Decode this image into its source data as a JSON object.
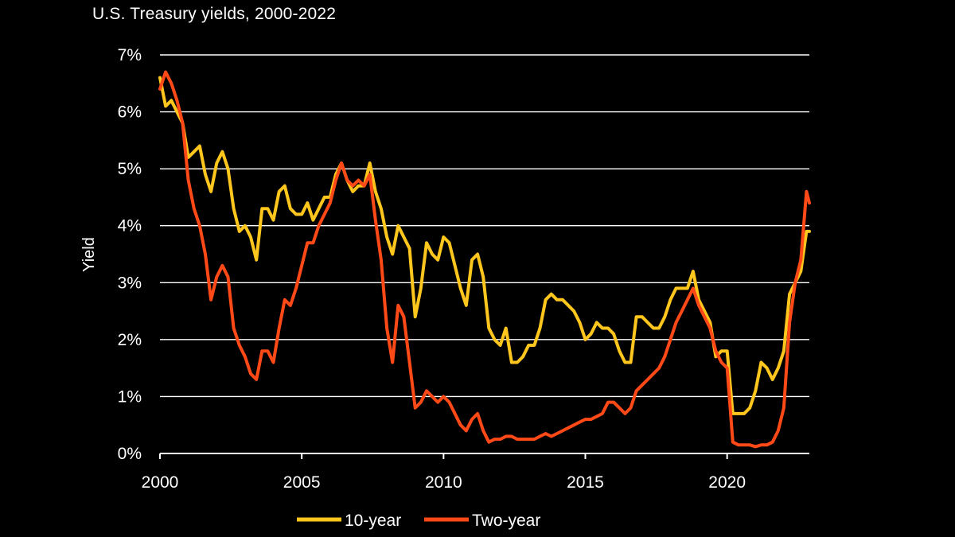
{
  "chart_data": {
    "type": "line",
    "title": "U.S. Treasury yields, 2000-2022",
    "xlabel": "",
    "ylabel": "Yield",
    "xlim": [
      2000,
      2022.9
    ],
    "ylim": [
      0,
      7
    ],
    "x_ticks": [
      "2000",
      "2005",
      "2010",
      "2015",
      "2020"
    ],
    "y_ticks": [
      "0%",
      "1%",
      "2%",
      "3%",
      "4%",
      "5%",
      "6%",
      "7%"
    ],
    "grid": "horizontal",
    "legend": "bottom",
    "series": [
      {
        "name": "10-year",
        "color": "#FFC61E",
        "x": [
          2000.0,
          2000.2,
          2000.4,
          2000.6,
          2000.8,
          2001.0,
          2001.2,
          2001.4,
          2001.6,
          2001.8,
          2002.0,
          2002.2,
          2002.4,
          2002.6,
          2002.8,
          2003.0,
          2003.2,
          2003.4,
          2003.6,
          2003.8,
          2004.0,
          2004.2,
          2004.4,
          2004.6,
          2004.8,
          2005.0,
          2005.2,
          2005.4,
          2005.6,
          2005.8,
          2006.0,
          2006.2,
          2006.4,
          2006.6,
          2006.8,
          2007.0,
          2007.2,
          2007.4,
          2007.6,
          2007.8,
          2008.0,
          2008.2,
          2008.4,
          2008.6,
          2008.8,
          2009.0,
          2009.2,
          2009.4,
          2009.6,
          2009.8,
          2010.0,
          2010.2,
          2010.4,
          2010.6,
          2010.8,
          2011.0,
          2011.2,
          2011.4,
          2011.6,
          2011.8,
          2012.0,
          2012.2,
          2012.4,
          2012.6,
          2012.8,
          2013.0,
          2013.2,
          2013.4,
          2013.6,
          2013.8,
          2014.0,
          2014.2,
          2014.4,
          2014.6,
          2014.8,
          2015.0,
          2015.2,
          2015.4,
          2015.6,
          2015.8,
          2016.0,
          2016.2,
          2016.4,
          2016.6,
          2016.8,
          2017.0,
          2017.2,
          2017.4,
          2017.6,
          2017.8,
          2018.0,
          2018.2,
          2018.4,
          2018.6,
          2018.8,
          2019.0,
          2019.2,
          2019.4,
          2019.6,
          2019.8,
          2020.0,
          2020.2,
          2020.4,
          2020.6,
          2020.8,
          2021.0,
          2021.2,
          2021.4,
          2021.6,
          2021.8,
          2022.0,
          2022.2,
          2022.4,
          2022.6,
          2022.8,
          2022.9
        ],
        "values": [
          6.6,
          6.1,
          6.2,
          6.0,
          5.8,
          5.2,
          5.3,
          5.4,
          4.9,
          4.6,
          5.1,
          5.3,
          5.0,
          4.3,
          3.9,
          4.0,
          3.8,
          3.4,
          4.3,
          4.3,
          4.1,
          4.6,
          4.7,
          4.3,
          4.2,
          4.2,
          4.4,
          4.1,
          4.3,
          4.5,
          4.5,
          4.9,
          5.1,
          4.8,
          4.6,
          4.7,
          4.7,
          5.1,
          4.6,
          4.3,
          3.8,
          3.5,
          4.0,
          3.8,
          3.6,
          2.4,
          2.9,
          3.7,
          3.5,
          3.4,
          3.8,
          3.7,
          3.3,
          2.9,
          2.6,
          3.4,
          3.5,
          3.1,
          2.2,
          2.0,
          1.9,
          2.2,
          1.6,
          1.6,
          1.7,
          1.9,
          1.9,
          2.2,
          2.7,
          2.8,
          2.7,
          2.7,
          2.6,
          2.5,
          2.3,
          2.0,
          2.1,
          2.3,
          2.2,
          2.2,
          2.1,
          1.8,
          1.6,
          1.6,
          2.4,
          2.4,
          2.3,
          2.2,
          2.2,
          2.4,
          2.7,
          2.9,
          2.9,
          2.9,
          3.2,
          2.7,
          2.5,
          2.3,
          1.7,
          1.8,
          1.8,
          0.7,
          0.7,
          0.7,
          0.8,
          1.1,
          1.6,
          1.5,
          1.3,
          1.5,
          1.8,
          2.8,
          3.0,
          3.2,
          3.9,
          3.9
        ]
      },
      {
        "name": "Two-year",
        "color": "#FF4A17",
        "x": [
          2000.0,
          2000.2,
          2000.4,
          2000.6,
          2000.8,
          2001.0,
          2001.2,
          2001.4,
          2001.6,
          2001.8,
          2002.0,
          2002.2,
          2002.4,
          2002.6,
          2002.8,
          2003.0,
          2003.2,
          2003.4,
          2003.6,
          2003.8,
          2004.0,
          2004.2,
          2004.4,
          2004.6,
          2004.8,
          2005.0,
          2005.2,
          2005.4,
          2005.6,
          2005.8,
          2006.0,
          2006.2,
          2006.4,
          2006.6,
          2006.8,
          2007.0,
          2007.2,
          2007.4,
          2007.6,
          2007.8,
          2008.0,
          2008.2,
          2008.4,
          2008.6,
          2008.8,
          2009.0,
          2009.2,
          2009.4,
          2009.6,
          2009.8,
          2010.0,
          2010.2,
          2010.4,
          2010.6,
          2010.8,
          2011.0,
          2011.2,
          2011.4,
          2011.6,
          2011.8,
          2012.0,
          2012.2,
          2012.4,
          2012.6,
          2012.8,
          2013.0,
          2013.2,
          2013.4,
          2013.6,
          2013.8,
          2014.0,
          2014.2,
          2014.4,
          2014.6,
          2014.8,
          2015.0,
          2015.2,
          2015.4,
          2015.6,
          2015.8,
          2016.0,
          2016.2,
          2016.4,
          2016.6,
          2016.8,
          2017.0,
          2017.2,
          2017.4,
          2017.6,
          2017.8,
          2018.0,
          2018.2,
          2018.4,
          2018.6,
          2018.8,
          2019.0,
          2019.2,
          2019.4,
          2019.6,
          2019.8,
          2020.0,
          2020.2,
          2020.4,
          2020.6,
          2020.8,
          2021.0,
          2021.2,
          2021.4,
          2021.6,
          2021.8,
          2022.0,
          2022.2,
          2022.4,
          2022.6,
          2022.8,
          2022.9
        ],
        "values": [
          6.4,
          6.7,
          6.5,
          6.2,
          5.8,
          4.8,
          4.3,
          4.0,
          3.5,
          2.7,
          3.1,
          3.3,
          3.1,
          2.2,
          1.9,
          1.7,
          1.4,
          1.3,
          1.8,
          1.8,
          1.6,
          2.2,
          2.7,
          2.6,
          2.9,
          3.3,
          3.7,
          3.7,
          4.0,
          4.2,
          4.4,
          4.8,
          5.1,
          4.8,
          4.7,
          4.8,
          4.7,
          4.9,
          4.1,
          3.4,
          2.2,
          1.6,
          2.6,
          2.4,
          1.6,
          0.8,
          0.9,
          1.1,
          1.0,
          0.9,
          1.0,
          0.9,
          0.7,
          0.5,
          0.4,
          0.6,
          0.7,
          0.4,
          0.2,
          0.25,
          0.25,
          0.3,
          0.3,
          0.25,
          0.25,
          0.25,
          0.25,
          0.3,
          0.35,
          0.3,
          0.35,
          0.4,
          0.45,
          0.5,
          0.55,
          0.6,
          0.6,
          0.65,
          0.7,
          0.9,
          0.9,
          0.8,
          0.7,
          0.8,
          1.1,
          1.2,
          1.3,
          1.4,
          1.5,
          1.7,
          2.0,
          2.3,
          2.5,
          2.7,
          2.9,
          2.6,
          2.4,
          2.2,
          1.8,
          1.6,
          1.5,
          0.2,
          0.15,
          0.15,
          0.15,
          0.12,
          0.15,
          0.15,
          0.2,
          0.4,
          0.8,
          2.3,
          3.0,
          3.4,
          4.6,
          4.4
        ]
      }
    ]
  }
}
